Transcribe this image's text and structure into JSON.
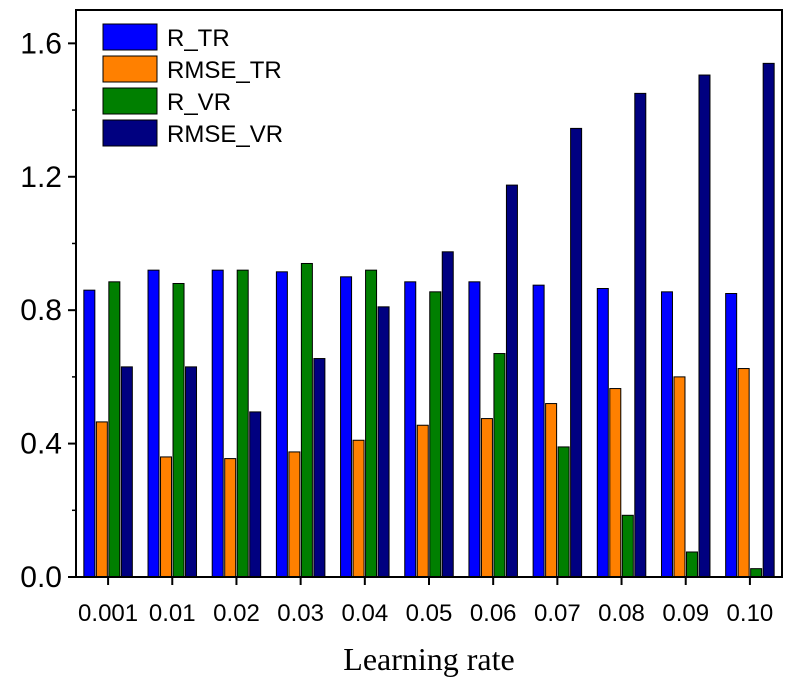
{
  "chart_data": {
    "type": "bar",
    "title": "",
    "xlabel": "Learning rate",
    "ylabel": "",
    "categories": [
      "0.001",
      "0.01",
      "0.02",
      "0.03",
      "0.04",
      "0.05",
      "0.06",
      "0.07",
      "0.08",
      "0.09",
      "0.10"
    ],
    "ylim": [
      0.0,
      1.7
    ],
    "yticks": [
      "0.0",
      "0.4",
      "0.8",
      "1.2",
      "1.6"
    ],
    "grid": false,
    "legend_position": "top-left",
    "series": [
      {
        "name": "R_TR",
        "color": "#0000FF",
        "values": [
          0.86,
          0.92,
          0.92,
          0.915,
          0.9,
          0.885,
          0.885,
          0.875,
          0.865,
          0.855,
          0.85
        ]
      },
      {
        "name": "RMSE_TR",
        "color": "#FF8000",
        "values": [
          0.465,
          0.36,
          0.355,
          0.375,
          0.41,
          0.455,
          0.475,
          0.52,
          0.565,
          0.6,
          0.625
        ]
      },
      {
        "name": "R_VR",
        "color": "#007F00",
        "values": [
          0.885,
          0.88,
          0.92,
          0.94,
          0.92,
          0.855,
          0.67,
          0.39,
          0.185,
          0.075,
          0.025
        ]
      },
      {
        "name": "RMSE_VR",
        "color": "#000080",
        "values": [
          0.63,
          0.63,
          0.495,
          0.655,
          0.81,
          0.975,
          1.175,
          1.345,
          1.45,
          1.505,
          1.54
        ]
      }
    ]
  }
}
